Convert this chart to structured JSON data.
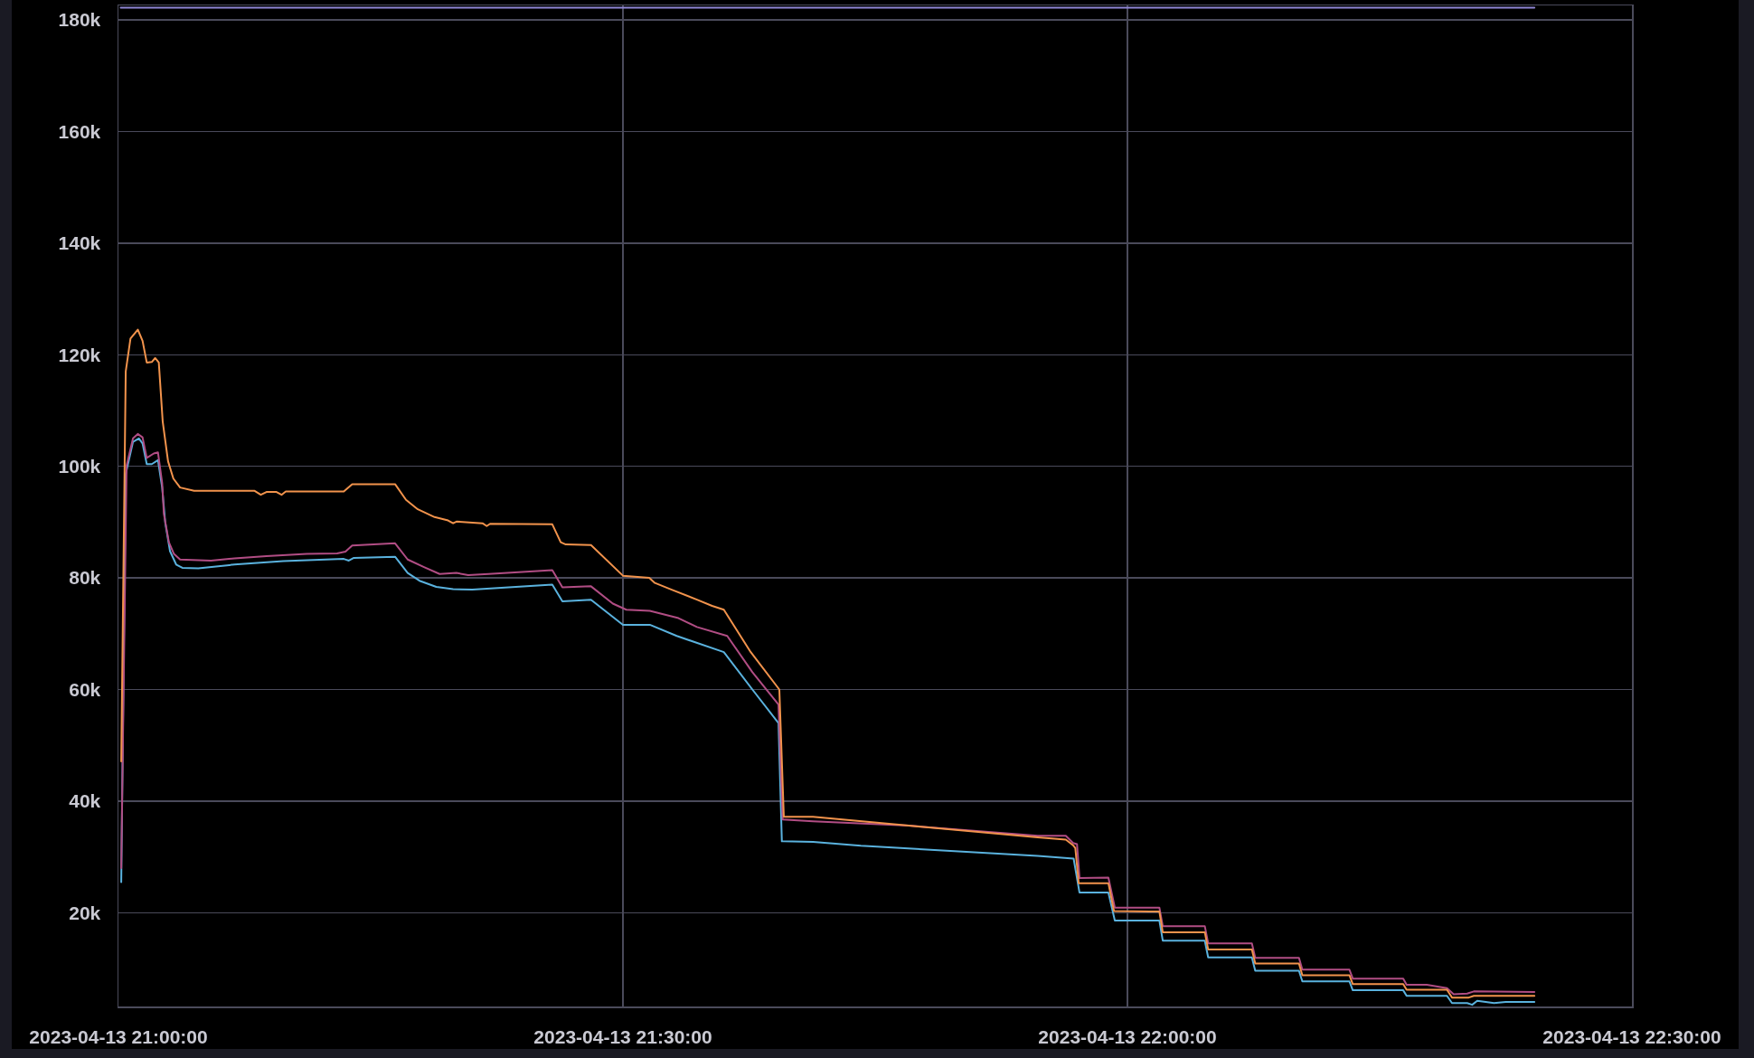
{
  "chart_data": {
    "type": "line",
    "xlim": [
      "2023-04-13T21:00",
      "2023-04-13T22:30"
    ],
    "xticks": [
      {
        "value": "2023-04-13T21:00",
        "label": "2023-04-13 21:00:00"
      },
      {
        "value": "2023-04-13T21:30",
        "label": "2023-04-13 21:30:00"
      },
      {
        "value": "2023-04-13T22:00",
        "label": "2023-04-13 22:00:00"
      },
      {
        "value": "2023-04-13T22:30",
        "label": "2023-04-13 22:30:00"
      }
    ],
    "ylim": [
      3200,
      182600
    ],
    "yticks": [
      {
        "value": 20000,
        "label": "20k"
      },
      {
        "value": 40000,
        "label": "40k"
      },
      {
        "value": 60000,
        "label": "60k"
      },
      {
        "value": 80000,
        "label": "80k"
      },
      {
        "value": 100000,
        "label": "100k"
      },
      {
        "value": 120000,
        "label": "120k"
      },
      {
        "value": 140000,
        "label": "140k"
      },
      {
        "value": 160000,
        "label": "160k"
      },
      {
        "value": 180000,
        "label": "180k"
      }
    ],
    "grid": true,
    "series": [
      {
        "color": "#8f86d4",
        "x": [
          "2023-04-13T21:00:08",
          "2023-04-13T22:24:12"
        ],
        "values": [
          182200,
          182200
        ]
      },
      {
        "color": "#5ab2de",
        "x": [
          "2023-04-13T21:00:10",
          "2023-04-13T21:00:26",
          "2023-04-13T21:00:52",
          "2023-04-13T21:01:13",
          "2023-04-13T21:01:26",
          "2023-04-13T21:01:41",
          "2023-04-13T21:01:59",
          "2023-04-13T21:02:21",
          "2023-04-13T21:02:36",
          "2023-04-13T21:02:47",
          "2023-04-13T21:03:04",
          "2023-04-13T21:03:26",
          "2023-04-13T21:03:48",
          "2023-04-13T21:04:45",
          "2023-04-13T21:06:54",
          "2023-04-13T21:09:48",
          "2023-04-13T21:13:24",
          "2023-04-13T21:13:42",
          "2023-04-13T21:14:00",
          "2023-04-13T21:16:27",
          "2023-04-13T21:17:12",
          "2023-04-13T21:17:54",
          "2023-04-13T21:18:54",
          "2023-04-13T21:19:54",
          "2023-04-13T21:21:03",
          "2023-04-13T21:25:48",
          "2023-04-13T21:26:24",
          "2023-04-13T21:28:06",
          "2023-04-13T21:30:00",
          "2023-04-13T21:31:36",
          "2023-04-13T21:33:12",
          "2023-04-13T21:36:00",
          "2023-04-13T21:37:45",
          "2023-04-13T21:39:15",
          "2023-04-13T21:39:27",
          "2023-04-13T21:41:18",
          "2023-04-13T21:44:09",
          "2023-04-13T21:54:40",
          "2023-04-13T21:56:48",
          "2023-04-13T21:57:09",
          "2023-04-13T21:58:52",
          "2023-04-13T21:59:15",
          "2023-04-13T22:01:54",
          "2023-04-13T22:02:06",
          "2023-04-13T22:04:36",
          "2023-04-13T22:04:48",
          "2023-04-13T22:07:24",
          "2023-04-13T22:07:36",
          "2023-04-13T22:10:12",
          "2023-04-13T22:10:24",
          "2023-04-13T22:13:12",
          "2023-04-13T22:13:24",
          "2023-04-13T22:16:24",
          "2023-04-13T22:16:36",
          "2023-04-13T22:19:00",
          "2023-04-13T22:19:18",
          "2023-04-13T22:20:12",
          "2023-04-13T22:20:30",
          "2023-04-13T22:20:48",
          "2023-04-13T22:21:48",
          "2023-04-13T22:22:30",
          "2023-04-13T22:24:12"
        ],
        "values": [
          25500,
          98600,
          104400,
          105000,
          104100,
          100400,
          100400,
          101100,
          96200,
          89900,
          84800,
          82400,
          81800,
          81700,
          82400,
          83000,
          83400,
          83100,
          83600,
          83800,
          80900,
          79500,
          78400,
          78000,
          77900,
          78800,
          75800,
          76100,
          71600,
          71600,
          69600,
          66700,
          59800,
          54000,
          32800,
          32700,
          32000,
          30200,
          29700,
          23600,
          23600,
          18600,
          18600,
          15000,
          15000,
          12000,
          12000,
          9600,
          9600,
          7700,
          7700,
          6100,
          6100,
          5100,
          5100,
          3800,
          3800,
          3500,
          4200,
          3800,
          4000,
          4000
        ]
      },
      {
        "color": "#b14d84",
        "x": [
          "2023-04-13T21:00:10",
          "2023-04-13T21:00:29",
          "2023-04-13T21:00:52",
          "2023-04-13T21:01:09",
          "2023-04-13T21:01:26",
          "2023-04-13T21:01:41",
          "2023-04-13T21:02:06",
          "2023-04-13T21:02:21",
          "2023-04-13T21:02:36",
          "2023-04-13T21:02:42",
          "2023-04-13T21:03:00",
          "2023-04-13T21:03:18",
          "2023-04-13T21:03:40",
          "2023-04-13T21:05:30",
          "2023-04-13T21:06:54",
          "2023-04-13T21:08:48",
          "2023-04-13T21:11:12",
          "2023-04-13T21:13:00",
          "2023-04-13T21:13:30",
          "2023-04-13T21:13:54",
          "2023-04-13T21:16:27",
          "2023-04-13T21:17:12",
          "2023-04-13T21:18:12",
          "2023-04-13T21:19:06",
          "2023-04-13T21:20:06",
          "2023-04-13T21:20:48",
          "2023-04-13T21:22:00",
          "2023-04-13T21:25:48",
          "2023-04-13T21:26:24",
          "2023-04-13T21:28:06",
          "2023-04-13T21:29:24",
          "2023-04-13T21:30:12",
          "2023-04-13T21:31:36",
          "2023-04-13T21:33:18",
          "2023-04-13T21:34:24",
          "2023-04-13T21:36:12",
          "2023-04-13T21:37:42",
          "2023-04-13T21:39:15",
          "2023-04-13T21:39:30",
          "2023-04-13T21:41:18",
          "2023-04-13T21:47:00",
          "2023-04-13T21:54:40",
          "2023-04-13T21:56:20",
          "2023-04-13T21:56:46",
          "2023-04-13T21:57:00",
          "2023-04-13T21:57:09",
          "2023-04-13T21:58:52",
          "2023-04-13T21:59:15",
          "2023-04-13T22:01:54",
          "2023-04-13T22:02:06",
          "2023-04-13T22:04:36",
          "2023-04-13T22:04:48",
          "2023-04-13T22:07:24",
          "2023-04-13T22:07:36",
          "2023-04-13T22:10:12",
          "2023-04-13T22:10:24",
          "2023-04-13T22:13:12",
          "2023-04-13T22:13:24",
          "2023-04-13T22:16:24",
          "2023-04-13T22:16:36",
          "2023-04-13T22:17:48",
          "2023-04-13T22:19:00",
          "2023-04-13T22:19:24",
          "2023-04-13T22:20:12",
          "2023-04-13T22:20:36",
          "2023-04-13T22:24:12"
        ],
        "values": [
          28000,
          100100,
          105000,
          105800,
          105200,
          101500,
          102300,
          102500,
          97000,
          91500,
          86400,
          84300,
          83300,
          83100,
          83500,
          83900,
          84300,
          84400,
          84700,
          85800,
          86200,
          83300,
          81900,
          80700,
          80900,
          80500,
          80700,
          81400,
          78300,
          78500,
          75400,
          74300,
          74100,
          72800,
          71200,
          69600,
          63100,
          57300,
          36700,
          36400,
          35600,
          33800,
          33800,
          32500,
          32300,
          26200,
          26300,
          20900,
          20900,
          17600,
          17600,
          14500,
          14500,
          11900,
          11900,
          9800,
          9800,
          8200,
          8200,
          7100,
          7100,
          6500,
          5400,
          5500,
          5900,
          5800
        ]
      },
      {
        "color": "#f2934c",
        "x": [
          "2023-04-13T21:00:10",
          "2023-04-13T21:00:26",
          "2023-04-13T21:00:43",
          "2023-04-13T21:01:09",
          "2023-04-13T21:01:26",
          "2023-04-13T21:01:41",
          "2023-04-13T21:01:59",
          "2023-04-13T21:02:11",
          "2023-04-13T21:02:24",
          "2023-04-13T21:02:38",
          "2023-04-13T21:02:57",
          "2023-04-13T21:03:16",
          "2023-04-13T21:03:40",
          "2023-04-13T21:04:30",
          "2023-04-13T21:08:06",
          "2023-04-13T21:08:28",
          "2023-04-13T21:08:48",
          "2023-04-13T21:09:24",
          "2023-04-13T21:09:42",
          "2023-04-13T21:09:57",
          "2023-04-13T21:13:24",
          "2023-04-13T21:13:54",
          "2023-04-13T21:16:27",
          "2023-04-13T21:17:06",
          "2023-04-13T21:17:48",
          "2023-04-13T21:18:48",
          "2023-04-13T21:19:36",
          "2023-04-13T21:19:54",
          "2023-04-13T21:20:06",
          "2023-04-13T21:21:39",
          "2023-04-13T21:21:54",
          "2023-04-13T21:22:06",
          "2023-04-13T21:25:48",
          "2023-04-13T21:26:18",
          "2023-04-13T21:26:36",
          "2023-04-13T21:28:06",
          "2023-04-13T21:30:00",
          "2023-04-13T21:31:34",
          "2023-04-13T21:31:54",
          "2023-04-13T21:32:54",
          "2023-04-13T21:34:24",
          "2023-04-13T21:35:18",
          "2023-04-13T21:36:00",
          "2023-04-13T21:37:36",
          "2023-04-13T21:39:18",
          "2023-04-13T21:39:34",
          "2023-04-13T21:41:18",
          "2023-04-13T21:47:00",
          "2023-04-13T21:54:40",
          "2023-04-13T21:56:20",
          "2023-04-13T21:56:46",
          "2023-04-13T21:56:54",
          "2023-04-13T21:57:06",
          "2023-04-13T21:58:52",
          "2023-04-13T21:59:12",
          "2023-04-13T22:01:54",
          "2023-04-13T22:02:06",
          "2023-04-13T22:04:36",
          "2023-04-13T22:04:48",
          "2023-04-13T22:07:24",
          "2023-04-13T22:07:36",
          "2023-04-13T22:10:12",
          "2023-04-13T22:10:24",
          "2023-04-13T22:13:12",
          "2023-04-13T22:13:24",
          "2023-04-13T22:16:24",
          "2023-04-13T22:16:36",
          "2023-04-13T22:19:00",
          "2023-04-13T22:19:18",
          "2023-04-13T22:20:18",
          "2023-04-13T22:20:36",
          "2023-04-13T22:24:12"
        ],
        "values": [
          47100,
          117000,
          122900,
          124500,
          122500,
          118600,
          118700,
          119400,
          118600,
          108000,
          100900,
          97800,
          96200,
          95600,
          95600,
          94900,
          95400,
          95400,
          94900,
          95500,
          95500,
          96800,
          96800,
          94000,
          92300,
          90900,
          90300,
          89800,
          90100,
          89800,
          89300,
          89700,
          89600,
          86400,
          86000,
          85900,
          80400,
          80000,
          79100,
          77900,
          76100,
          75000,
          74300,
          66700,
          60000,
          37200,
          37200,
          35600,
          33500,
          33100,
          32100,
          31600,
          25300,
          25300,
          20300,
          20200,
          16500,
          16500,
          13400,
          13400,
          10900,
          10900,
          8800,
          8800,
          7200,
          7200,
          6200,
          6200,
          4800,
          4800,
          5100,
          5100
        ]
      }
    ]
  }
}
